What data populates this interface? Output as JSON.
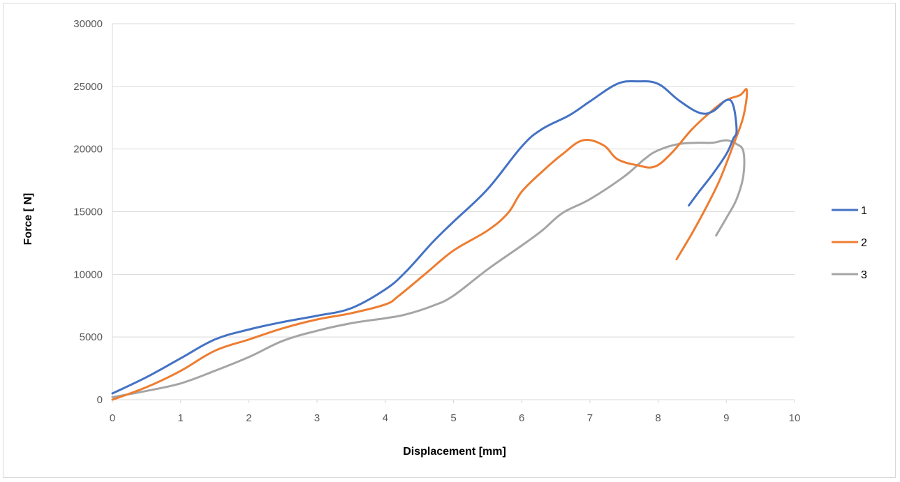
{
  "chart_data": {
    "type": "line",
    "title": "",
    "xlabel": "Displacement [mm]",
    "ylabel": "Force [ N]",
    "xlim": [
      0,
      10
    ],
    "ylim": [
      0,
      30000
    ],
    "x_ticks": [
      0,
      1,
      2,
      3,
      4,
      5,
      6,
      7,
      8,
      9,
      10
    ],
    "y_ticks": [
      0,
      5000,
      10000,
      15000,
      20000,
      25000,
      30000
    ],
    "grid": "horizontal",
    "legend_position": "right",
    "series": [
      {
        "name": "1",
        "color": "#4472c4",
        "x": [
          0,
          0.5,
          1,
          1.5,
          2,
          2.5,
          3,
          3.5,
          4,
          4.3,
          4.7,
          5,
          5.5,
          6,
          6.3,
          6.7,
          7,
          7.4,
          7.7,
          8,
          8.3,
          8.6,
          8.8,
          9,
          9.1,
          9.15,
          9.1,
          9.0,
          8.8,
          8.6,
          8.45
        ],
        "y": [
          500,
          1800,
          3300,
          4800,
          5600,
          6200,
          6700,
          7300,
          8800,
          10200,
          12600,
          14200,
          16800,
          20200,
          21600,
          22700,
          23800,
          25200,
          25400,
          25200,
          23900,
          22900,
          23000,
          23900,
          23500,
          21500,
          20800,
          19600,
          18000,
          16600,
          15500
        ]
      },
      {
        "name": "2",
        "color": "#ed7d31",
        "x": [
          0,
          0.5,
          1,
          1.5,
          2,
          2.5,
          3,
          3.5,
          4,
          4.2,
          4.6,
          5,
          5.5,
          5.8,
          6,
          6.3,
          6.6,
          6.9,
          7.2,
          7.4,
          7.7,
          7.95,
          8.2,
          8.5,
          8.8,
          9.0,
          9.2,
          9.3,
          9.25,
          9.1,
          8.9,
          8.7,
          8.5,
          8.27
        ],
        "y": [
          0,
          1000,
          2300,
          3900,
          4800,
          5700,
          6400,
          6900,
          7600,
          8300,
          10100,
          11900,
          13500,
          14900,
          16600,
          18200,
          19600,
          20700,
          20300,
          19200,
          18700,
          18600,
          19700,
          21600,
          23100,
          23900,
          24300,
          24700,
          22600,
          20300,
          17500,
          15300,
          13300,
          11200
        ]
      },
      {
        "name": "3",
        "color": "#a5a5a5",
        "x": [
          0,
          0.5,
          1,
          1.5,
          2,
          2.5,
          3,
          3.5,
          4,
          4.3,
          4.7,
          5,
          5.5,
          6,
          6.3,
          6.6,
          7,
          7.5,
          7.8,
          8,
          8.3,
          8.6,
          8.8,
          9,
          9.15,
          9.25,
          9.25,
          9.15,
          9.0,
          8.85
        ],
        "y": [
          200,
          700,
          1300,
          2300,
          3400,
          4700,
          5500,
          6100,
          6500,
          6800,
          7500,
          8300,
          10400,
          12300,
          13500,
          14900,
          16000,
          17800,
          19200,
          19900,
          20400,
          20500,
          20500,
          20700,
          20400,
          19800,
          17900,
          16000,
          14500,
          13100
        ]
      }
    ]
  }
}
